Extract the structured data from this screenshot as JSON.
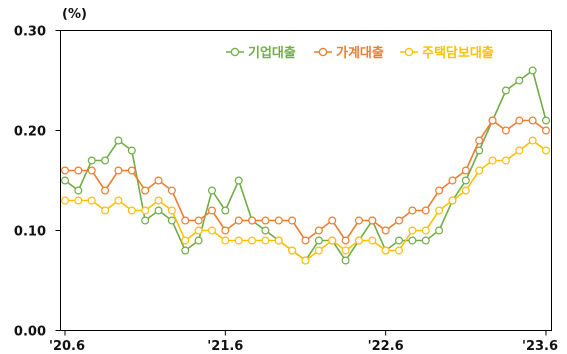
{
  "chart_data": {
    "type": "line",
    "unit_label": "(%)",
    "x_tick_labels": [
      "'20.6",
      "'21.6",
      "'22.6",
      "'23.6"
    ],
    "x_tick_index": [
      0,
      12,
      24,
      36
    ],
    "y_ticks": [
      "0.00",
      "0.10",
      "0.20",
      "0.30"
    ],
    "ylim": [
      0,
      0.3
    ],
    "grid": false,
    "legend_position": "top-right",
    "series": [
      {
        "name": "기업대출",
        "color": "#70ad47",
        "values": [
          0.15,
          0.14,
          0.17,
          0.17,
          0.19,
          0.18,
          0.11,
          0.12,
          0.11,
          0.08,
          0.09,
          0.14,
          0.12,
          0.15,
          0.11,
          0.1,
          0.09,
          0.08,
          0.07,
          0.09,
          0.09,
          0.07,
          0.09,
          0.11,
          0.08,
          0.09,
          0.09,
          0.09,
          0.1,
          0.13,
          0.15,
          0.18,
          0.21,
          0.24,
          0.25,
          0.26,
          0.21
        ]
      },
      {
        "name": "가계대출",
        "color": "#ed7d31",
        "values": [
          0.16,
          0.16,
          0.16,
          0.14,
          0.16,
          0.16,
          0.14,
          0.15,
          0.14,
          0.11,
          0.11,
          0.12,
          0.1,
          0.11,
          0.11,
          0.11,
          0.11,
          0.11,
          0.09,
          0.1,
          0.11,
          0.09,
          0.11,
          0.11,
          0.1,
          0.11,
          0.12,
          0.12,
          0.14,
          0.15,
          0.16,
          0.19,
          0.21,
          0.2,
          0.21,
          0.21,
          0.2
        ]
      },
      {
        "name": "주택담보대출",
        "color": "#ffc000",
        "values": [
          0.13,
          0.13,
          0.13,
          0.12,
          0.13,
          0.12,
          0.12,
          0.13,
          0.12,
          0.09,
          0.1,
          0.1,
          0.09,
          0.09,
          0.09,
          0.09,
          0.09,
          0.08,
          0.07,
          0.08,
          0.09,
          0.08,
          0.09,
          0.09,
          0.08,
          0.08,
          0.1,
          0.1,
          0.12,
          0.13,
          0.14,
          0.16,
          0.17,
          0.17,
          0.18,
          0.19,
          0.18
        ]
      }
    ]
  }
}
